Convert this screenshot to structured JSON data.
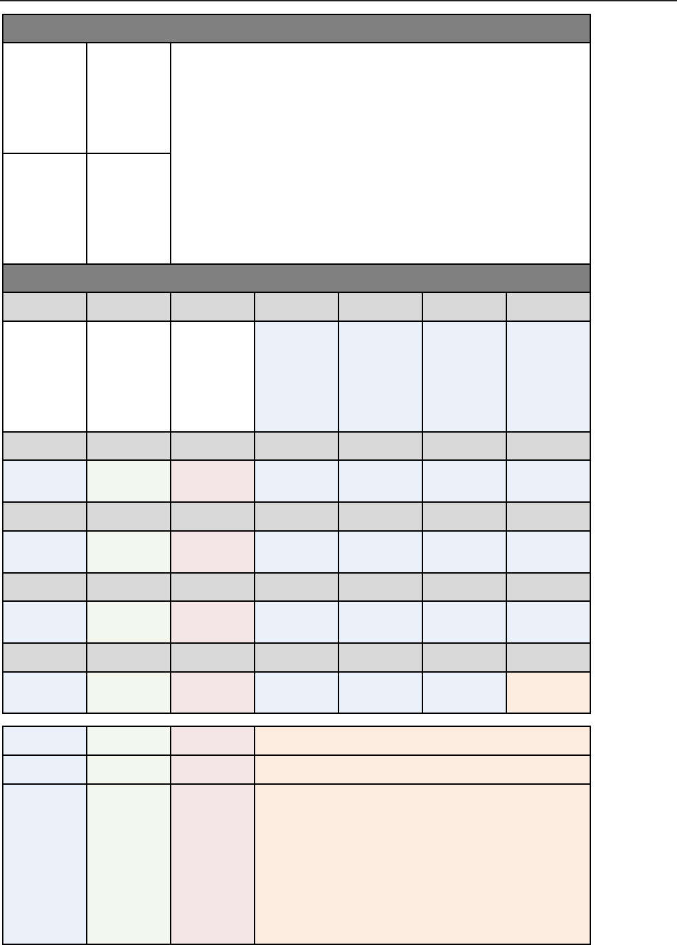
{
  "colors": {
    "section_header": "#808080",
    "column_header": "#d9d9d9",
    "blank": "#ffffff",
    "blue": "#eaf1fa",
    "green": "#f4f7ee",
    "pink": "#f4e6e6",
    "peach": "#fcede0"
  }
}
